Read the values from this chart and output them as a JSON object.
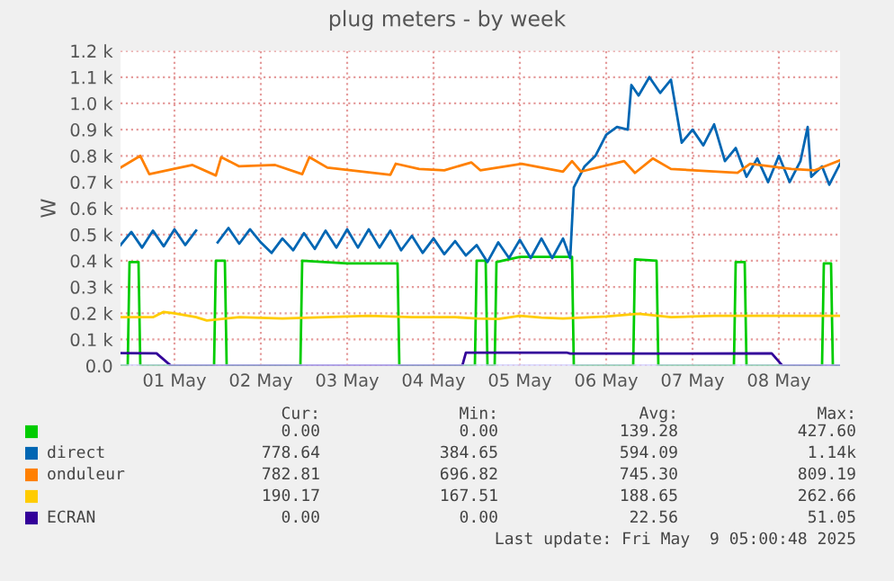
{
  "chart_data": {
    "type": "line",
    "title": "plug meters - by week",
    "ylabel": "W",
    "xlim": [
      "2025-04-30T21:00",
      "2025-05-09T05:00"
    ],
    "xticks": [
      {
        "value": "2025-05-01T12:00",
        "label": "01 May"
      },
      {
        "value": "2025-05-02T12:00",
        "label": "02 May"
      },
      {
        "value": "2025-05-03T12:00",
        "label": "03 May"
      },
      {
        "value": "2025-05-04T12:00",
        "label": "04 May"
      },
      {
        "value": "2025-05-05T12:00",
        "label": "05 May"
      },
      {
        "value": "2025-05-06T12:00",
        "label": "06 May"
      },
      {
        "value": "2025-05-07T12:00",
        "label": "07 May"
      },
      {
        "value": "2025-05-08T12:00",
        "label": "08 May"
      }
    ],
    "ylim": [
      0,
      1200
    ],
    "yticks": [
      {
        "value": 0,
        "label": "0.0"
      },
      {
        "value": 100,
        "label": "0.1 k"
      },
      {
        "value": 200,
        "label": "0.2 k"
      },
      {
        "value": 300,
        "label": "0.3 k"
      },
      {
        "value": 400,
        "label": "0.4 k"
      },
      {
        "value": 500,
        "label": "0.5 k"
      },
      {
        "value": 600,
        "label": "0.6 k"
      },
      {
        "value": 700,
        "label": "0.7 k"
      },
      {
        "value": 800,
        "label": "0.8 k"
      },
      {
        "value": 900,
        "label": "0.9 k"
      },
      {
        "value": 1000,
        "label": "1.0 k"
      },
      {
        "value": 1100,
        "label": "1.1 k"
      },
      {
        "value": 1200,
        "label": "1.2 k"
      }
    ],
    "grid": true,
    "legend": "bottom",
    "marker": "none",
    "line_style": "solid",
    "series": [
      {
        "color": "#00cc00",
        "x": [
          "2025-04-30T21:00",
          "2025-04-30T23:00",
          "2025-04-30T23:30",
          "2025-05-01T02:00",
          "2025-05-01T02:30",
          "2025-05-01T23:00",
          "2025-05-01T23:30",
          "2025-05-02T02:00",
          "2025-05-02T02:30",
          "2025-05-02T23:00",
          "2025-05-02T23:30",
          "2025-05-03T12:00",
          "2025-05-04T02:00",
          "2025-05-04T02:30",
          "2025-05-04T23:30",
          "2025-05-05T00:00",
          "2025-05-05T02:30",
          "2025-05-05T03:00",
          "2025-05-05T05:00",
          "2025-05-05T05:30",
          "2025-05-05T12:00",
          "2025-05-06T02:30",
          "2025-05-06T03:00",
          "2025-05-06T19:30",
          "2025-05-06T20:00",
          "2025-05-07T02:00",
          "2025-05-07T02:30",
          "2025-05-07T23:30",
          "2025-05-08T00:00",
          "2025-05-08T02:30",
          "2025-05-08T03:00",
          "2025-05-09T00:00",
          "2025-05-09T00:30",
          "2025-05-09T02:30",
          "2025-05-09T03:00",
          "2025-05-09T05:00"
        ],
        "values": [
          0,
          0,
          395,
          395,
          0,
          0,
          400,
          400,
          0,
          0,
          400,
          390,
          390,
          0,
          0,
          400,
          400,
          0,
          0,
          395,
          415,
          415,
          0,
          0,
          405,
          400,
          0,
          0,
          395,
          395,
          0,
          0,
          390,
          390,
          0,
          0
        ]
      },
      {
        "name": "direct",
        "color": "#0066b3",
        "x": [
          "2025-04-30T21:00",
          "2025-05-01T00:00",
          "2025-05-01T03:00",
          "2025-05-01T06:00",
          "2025-05-01T09:00",
          "2025-05-01T12:00",
          "2025-05-01T15:00",
          "2025-05-01T18:00",
          "2025-05-01T21:00",
          "2025-05-02T00:00",
          "2025-05-02T03:00",
          "2025-05-02T06:00",
          "2025-05-02T09:00",
          "2025-05-02T12:00",
          "2025-05-02T15:00",
          "2025-05-02T18:00",
          "2025-05-02T21:00",
          "2025-05-03T00:00",
          "2025-05-03T03:00",
          "2025-05-03T06:00",
          "2025-05-03T09:00",
          "2025-05-03T12:00",
          "2025-05-03T15:00",
          "2025-05-03T18:00",
          "2025-05-03T21:00",
          "2025-05-04T00:00",
          "2025-05-04T03:00",
          "2025-05-04T06:00",
          "2025-05-04T09:00",
          "2025-05-04T12:00",
          "2025-05-04T15:00",
          "2025-05-04T18:00",
          "2025-05-04T21:00",
          "2025-05-05T00:00",
          "2025-05-05T03:00",
          "2025-05-05T06:00",
          "2025-05-05T09:00",
          "2025-05-05T12:00",
          "2025-05-05T15:00",
          "2025-05-05T18:00",
          "2025-05-05T21:00",
          "2025-05-06T00:00",
          "2025-05-06T02:00",
          "2025-05-06T03:00",
          "2025-05-06T06:00",
          "2025-05-06T09:00",
          "2025-05-06T12:00",
          "2025-05-06T15:00",
          "2025-05-06T18:00",
          "2025-05-06T19:00",
          "2025-05-06T21:00",
          "2025-05-07T00:00",
          "2025-05-07T03:00",
          "2025-05-07T06:00",
          "2025-05-07T09:00",
          "2025-05-07T12:00",
          "2025-05-07T15:00",
          "2025-05-07T18:00",
          "2025-05-07T21:00",
          "2025-05-08T00:00",
          "2025-05-08T03:00",
          "2025-05-08T06:00",
          "2025-05-08T09:00",
          "2025-05-08T12:00",
          "2025-05-08T15:00",
          "2025-05-08T18:00",
          "2025-05-08T20:00",
          "2025-05-08T21:00",
          "2025-05-09T00:00",
          "2025-05-09T02:00",
          "2025-05-09T05:00"
        ],
        "values": [
          460,
          510,
          450,
          515,
          455,
          520,
          460,
          515,
          null,
          470,
          525,
          465,
          520,
          470,
          430,
          485,
          440,
          505,
          445,
          515,
          450,
          520,
          450,
          520,
          450,
          515,
          440,
          495,
          430,
          485,
          425,
          475,
          420,
          460,
          395,
          470,
          410,
          480,
          410,
          485,
          410,
          485,
          410,
          680,
          760,
          800,
          880,
          910,
          900,
          1070,
          1030,
          1100,
          1040,
          1090,
          850,
          900,
          840,
          920,
          780,
          830,
          720,
          790,
          700,
          800,
          700,
          780,
          910,
          720,
          760,
          690,
          770
        ]
      },
      {
        "name": "onduleur",
        "color": "#ff8000",
        "x": [
          "2025-04-30T21:00",
          "2025-05-01T02:30",
          "2025-05-01T05:00",
          "2025-05-01T17:00",
          "2025-05-01T23:30",
          "2025-05-02T01:00",
          "2025-05-02T06:00",
          "2025-05-02T16:00",
          "2025-05-02T23:30",
          "2025-05-03T01:30",
          "2025-05-03T06:30",
          "2025-05-04T00:00",
          "2025-05-04T01:30",
          "2025-05-04T08:00",
          "2025-05-04T15:00",
          "2025-05-04T22:30",
          "2025-05-05T01:00",
          "2025-05-05T12:30",
          "2025-05-06T00:00",
          "2025-05-06T02:30",
          "2025-05-06T05:00",
          "2025-05-06T17:00",
          "2025-05-06T20:00",
          "2025-05-07T01:00",
          "2025-05-07T06:00",
          "2025-05-08T00:30",
          "2025-05-08T04:00",
          "2025-05-08T15:30",
          "2025-05-08T22:00",
          "2025-05-09T05:00"
        ],
        "values": [
          755,
          800,
          730,
          765,
          725,
          795,
          760,
          765,
          730,
          795,
          755,
          728,
          770,
          750,
          745,
          775,
          745,
          770,
          740,
          780,
          740,
          780,
          735,
          790,
          750,
          735,
          770,
          750,
          745,
          783
        ]
      },
      {
        "color": "#ffcc00",
        "x": [
          "2025-04-30T21:00",
          "2025-05-01T06:00",
          "2025-05-01T09:00",
          "2025-05-01T12:00",
          "2025-05-01T18:00",
          "2025-05-01T21:00",
          "2025-05-02T06:00",
          "2025-05-02T18:00",
          "2025-05-03T06:00",
          "2025-05-03T18:00",
          "2025-05-04T06:00",
          "2025-05-04T18:00",
          "2025-05-05T00:00",
          "2025-05-05T06:00",
          "2025-05-05T12:00",
          "2025-05-05T18:00",
          "2025-05-06T00:00",
          "2025-05-06T12:00",
          "2025-05-06T21:00",
          "2025-05-07T06:00",
          "2025-05-07T18:00",
          "2025-05-08T06:00",
          "2025-05-08T18:00",
          "2025-05-09T05:00"
        ],
        "values": [
          185,
          185,
          205,
          200,
          185,
          172,
          185,
          180,
          185,
          190,
          185,
          185,
          180,
          178,
          190,
          183,
          180,
          188,
          198,
          185,
          190,
          190,
          190,
          190
        ]
      },
      {
        "name": "ECRAN",
        "color": "#330099",
        "x": [
          "2025-04-30T21:00",
          "2025-05-01T07:00",
          "2025-05-01T11:00",
          "2025-05-04T20:00",
          "2025-05-04T21:00",
          "2025-05-06T01:00",
          "2025-05-06T02:00",
          "2025-05-08T10:00",
          "2025-05-08T13:00",
          "2025-05-09T05:00"
        ],
        "values": [
          48,
          47,
          0,
          0,
          50,
          50,
          46,
          47,
          0,
          0
        ]
      }
    ],
    "annotations": [
      "Cur:",
      "Min:",
      "Avg:",
      "Max:",
      "0.00",
      "0.00",
      "139.28",
      "427.60",
      "778.64",
      "384.65",
      "594.09",
      "1.14k",
      "782.81",
      "696.82",
      "745.30",
      "809.19",
      "190.17",
      "167.51",
      "188.65",
      "262.66",
      "0.00",
      "0.00",
      "22.56",
      "51.05",
      "Last update: Fri May  9 05:00:48 2025"
    ]
  }
}
